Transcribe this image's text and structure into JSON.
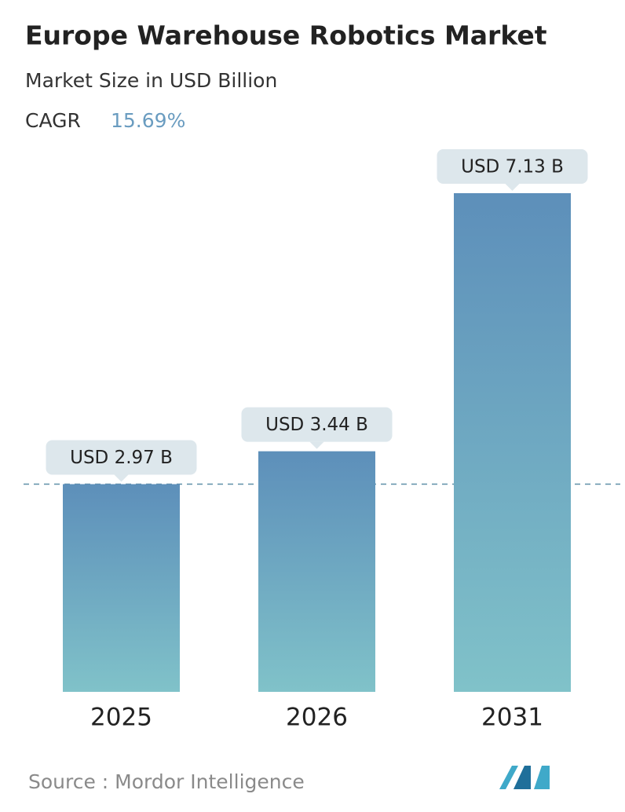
{
  "chart_data": {
    "type": "bar",
    "title": "Europe Warehouse Robotics Market",
    "subtitle": "Market Size in USD Billion",
    "cagr_label": "CAGR",
    "cagr_value": "15.69%",
    "categories": [
      "2025",
      "2026",
      "2031"
    ],
    "values": [
      2.97,
      3.44,
      7.13
    ],
    "value_labels": [
      "USD 2.97 B",
      "USD 3.44 B",
      "USD 7.13 B"
    ],
    "gradient": [
      "#5d8fba",
      "#80c2c9"
    ],
    "reference_line_color": "#5f8fa8",
    "source": "Source :  Mordor Intelligence"
  }
}
